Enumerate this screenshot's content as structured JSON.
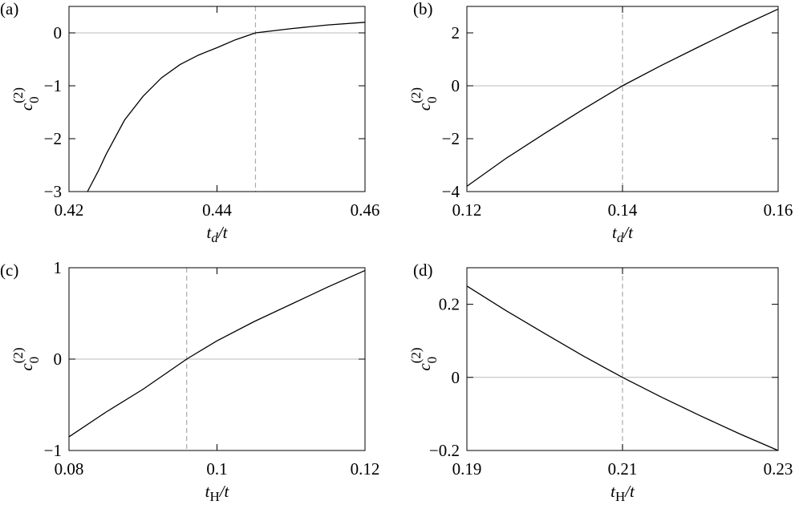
{
  "chart_data": [
    {
      "type": "line",
      "panel_label": "(a)",
      "xlabel": {
        "base": "t",
        "sub": "d",
        "tail": "/t"
      },
      "ylabel": {
        "base": "c",
        "sub": "0",
        "sup": "(2)"
      },
      "xlim": [
        0.42,
        0.46
      ],
      "xticks": [
        0.42,
        0.44,
        0.46
      ],
      "ylim": [
        -3,
        0.5
      ],
      "yticks": [
        {
          "value": -3,
          "label": "−3"
        },
        {
          "value": -2,
          "label": "−2"
        },
        {
          "value": -1,
          "label": "−1"
        },
        0
      ],
      "hline": 0,
      "vline": 0.4452,
      "color": "#000000",
      "x": [
        0.4225,
        0.424,
        0.425,
        0.4275,
        0.43,
        0.4325,
        0.435,
        0.4375,
        0.44,
        0.4425,
        0.4452,
        0.45,
        0.455,
        0.46
      ],
      "values": [
        -3,
        -2.6,
        -2.3,
        -1.65,
        -1.2,
        -0.85,
        -0.6,
        -0.42,
        -0.28,
        -0.13,
        0,
        0.08,
        0.15,
        0.2
      ]
    },
    {
      "type": "line",
      "panel_label": "(b)",
      "xlabel": {
        "base": "t",
        "sub": "d",
        "tail": "/t"
      },
      "ylabel": {
        "base": "c",
        "sub": "0",
        "sup": "(2)"
      },
      "xlim": [
        0.12,
        0.16
      ],
      "xticks": [
        0.12,
        0.14,
        0.16
      ],
      "ylim": [
        -4,
        3
      ],
      "yticks": [
        {
          "value": -4,
          "label": "−4"
        },
        {
          "value": -2,
          "label": "−2"
        },
        0,
        2
      ],
      "hline": 0,
      "vline": 0.14,
      "color": "#000000",
      "x": [
        0.12,
        0.125,
        0.13,
        0.135,
        0.14,
        0.145,
        0.15,
        0.155,
        0.16
      ],
      "values": [
        -3.8,
        -2.75,
        -1.8,
        -0.88,
        0,
        0.77,
        1.5,
        2.22,
        2.9
      ]
    },
    {
      "type": "line",
      "panel_label": "(c)",
      "xlabel": {
        "base": "t",
        "sub": "H",
        "tail": "/t"
      },
      "ylabel": {
        "base": "c",
        "sub": "0",
        "sup": "(2)"
      },
      "xlim": [
        0.08,
        0.12
      ],
      "xticks": [
        0.08,
        0.1,
        0.12
      ],
      "ylim": [
        -1,
        1
      ],
      "yticks": [
        {
          "value": -1,
          "label": "−1"
        },
        0,
        1
      ],
      "hline": 0,
      "vline": 0.0959,
      "color": "#000000",
      "x": [
        0.08,
        0.085,
        0.09,
        0.0959,
        0.1,
        0.105,
        0.11,
        0.115,
        0.12
      ],
      "values": [
        -0.85,
        -0.58,
        -0.33,
        0,
        0.2,
        0.41,
        0.6,
        0.79,
        0.97
      ]
    },
    {
      "type": "line",
      "panel_label": "(d)",
      "xlabel": {
        "base": "t",
        "sub": "H",
        "tail": "/t"
      },
      "ylabel": {
        "base": "c",
        "sub": "0",
        "sup": "(2)"
      },
      "xlim": [
        0.19,
        0.23
      ],
      "xticks": [
        0.19,
        0.21,
        0.23
      ],
      "ylim": [
        -0.2,
        0.3
      ],
      "yticks": [
        {
          "value": -0.2,
          "label": "−0.2"
        },
        0,
        0.2
      ],
      "hline": 0,
      "vline": 0.21,
      "color": "#000000",
      "x": [
        0.19,
        0.195,
        0.2,
        0.205,
        0.21,
        0.215,
        0.22,
        0.225,
        0.23
      ],
      "values": [
        0.25,
        0.183,
        0.12,
        0.058,
        0,
        -0.054,
        -0.105,
        -0.154,
        -0.2
      ]
    }
  ]
}
